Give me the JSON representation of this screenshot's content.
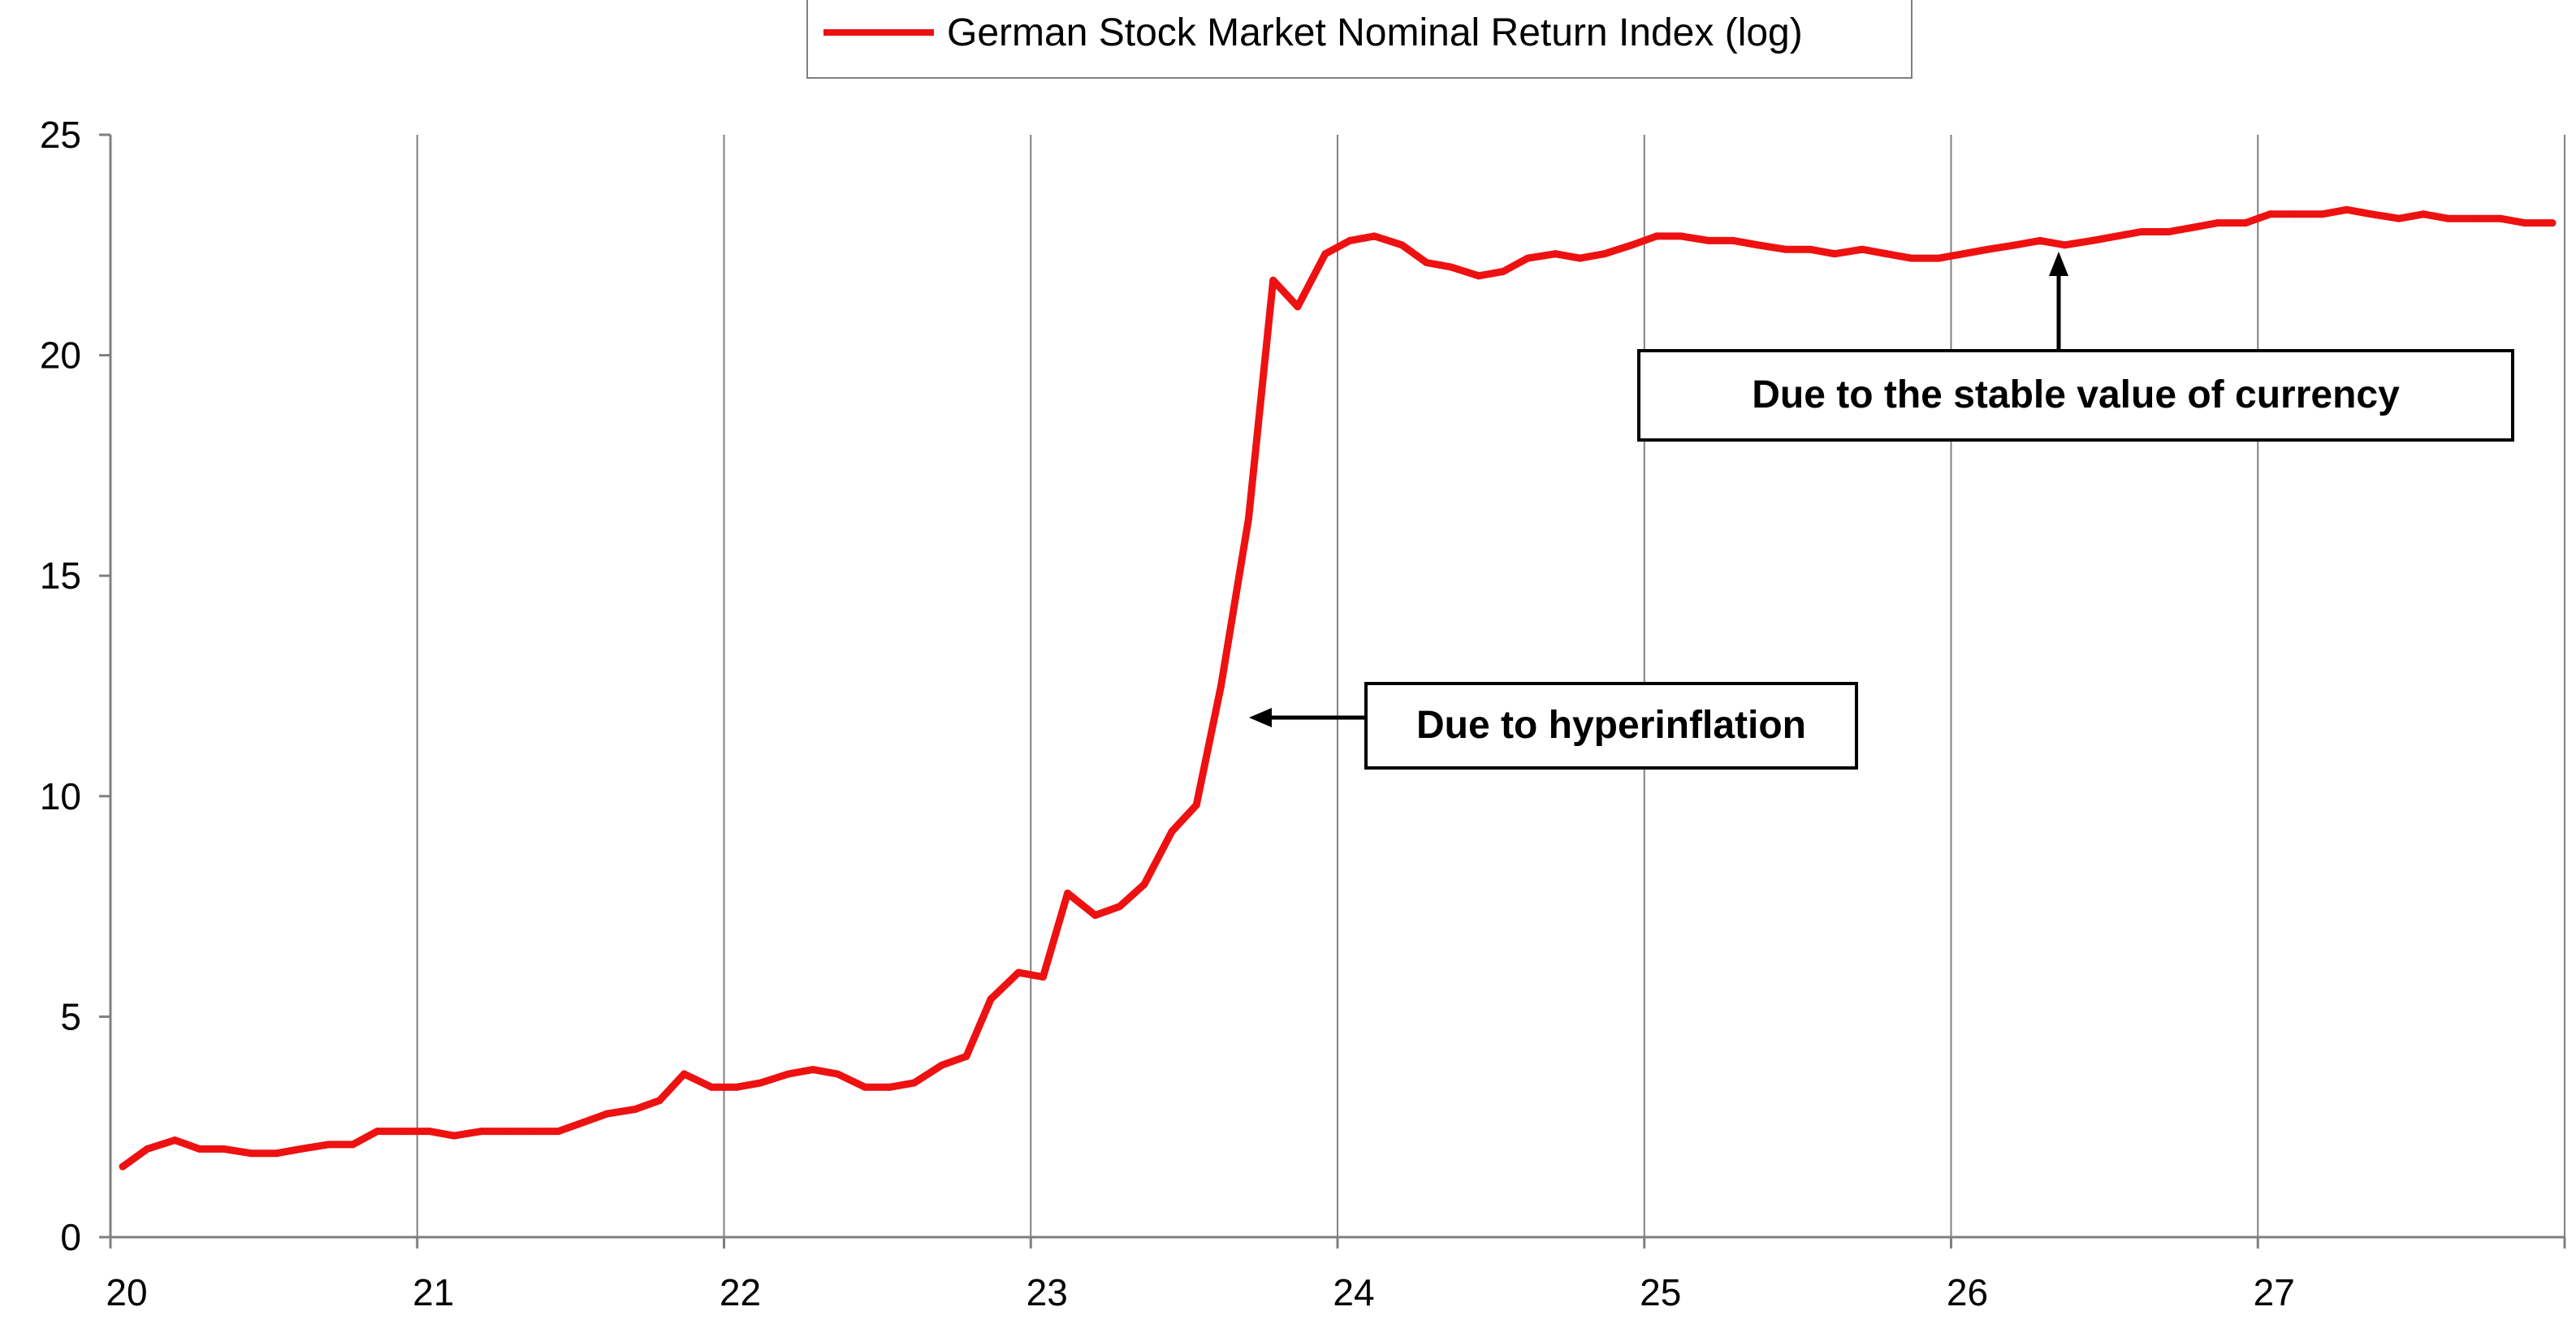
{
  "chart_data": {
    "type": "line",
    "title": "",
    "xlabel": "",
    "ylabel": "",
    "xlim": [
      20,
      28
    ],
    "ylim": [
      0,
      25
    ],
    "x_ticks": [
      20,
      21,
      22,
      23,
      24,
      25,
      26,
      27
    ],
    "x_tick_labels": [
      "20",
      "21",
      "22",
      "23",
      "24",
      "25",
      "26",
      "27"
    ],
    "y_ticks": [
      0,
      5,
      10,
      15,
      20,
      25
    ],
    "y_tick_labels": [
      "0",
      "5",
      "10",
      "15",
      "20",
      "25"
    ],
    "grid": {
      "vertical": true,
      "horizontal": false
    },
    "legend_position": "top-center",
    "series": [
      {
        "name": "German Stock Market Nominal Return Index (log)",
        "color": "#ee1111",
        "x": [
          20.04,
          20.12,
          20.21,
          20.29,
          20.37,
          20.46,
          20.54,
          20.62,
          20.71,
          20.79,
          20.87,
          20.96,
          21.04,
          21.12,
          21.21,
          21.29,
          21.37,
          21.46,
          21.54,
          21.62,
          21.71,
          21.79,
          21.87,
          21.96,
          22.04,
          22.12,
          22.21,
          22.29,
          22.37,
          22.46,
          22.54,
          22.62,
          22.71,
          22.79,
          22.87,
          22.96,
          23.04,
          23.12,
          23.21,
          23.29,
          23.37,
          23.46,
          23.54,
          23.62,
          23.71,
          23.79,
          23.87,
          23.96,
          24.04,
          24.12,
          24.21,
          24.29,
          24.37,
          24.46,
          24.54,
          24.62,
          24.71,
          24.79,
          24.87,
          24.96,
          25.04,
          25.12,
          25.21,
          25.29,
          25.37,
          25.46,
          25.54,
          25.62,
          25.71,
          25.79,
          25.87,
          25.96,
          26.04,
          26.12,
          26.21,
          26.29,
          26.37,
          26.46,
          26.54,
          26.62,
          26.71,
          26.79,
          26.87,
          26.96,
          27.04,
          27.12,
          27.21,
          27.29,
          27.37,
          27.46,
          27.54,
          27.62,
          27.71,
          27.79,
          27.87,
          27.96
        ],
        "y": [
          1.6,
          2.0,
          2.2,
          2.0,
          2.0,
          1.9,
          1.9,
          2.0,
          2.1,
          2.1,
          2.4,
          2.4,
          2.4,
          2.3,
          2.4,
          2.4,
          2.4,
          2.4,
          2.6,
          2.8,
          2.9,
          3.1,
          3.7,
          3.4,
          3.4,
          3.5,
          3.7,
          3.8,
          3.7,
          3.4,
          3.4,
          3.5,
          3.9,
          4.1,
          5.4,
          6.0,
          5.9,
          7.8,
          7.3,
          7.5,
          8.0,
          9.2,
          9.8,
          12.5,
          16.3,
          21.7,
          21.1,
          22.3,
          22.6,
          22.7,
          22.5,
          22.1,
          22.0,
          21.8,
          21.9,
          22.2,
          22.3,
          22.2,
          22.3,
          22.5,
          22.7,
          22.7,
          22.6,
          22.6,
          22.5,
          22.4,
          22.4,
          22.3,
          22.4,
          22.3,
          22.2,
          22.2,
          22.3,
          22.4,
          22.5,
          22.6,
          22.5,
          22.6,
          22.7,
          22.8,
          22.8,
          22.9,
          23.0,
          23.0,
          23.2,
          23.2,
          23.2,
          23.3,
          23.2,
          23.1,
          23.2,
          23.1,
          23.1,
          23.1,
          23.0,
          23.0
        ]
      }
    ],
    "annotations": [
      {
        "text": "Due to hyperinflation",
        "arrow_to": {
          "x": 23.72,
          "y": 11.7
        }
      },
      {
        "text": "Due to the stable value of currency",
        "arrow_to": {
          "x": 26.33,
          "y": 22.5
        }
      }
    ]
  }
}
